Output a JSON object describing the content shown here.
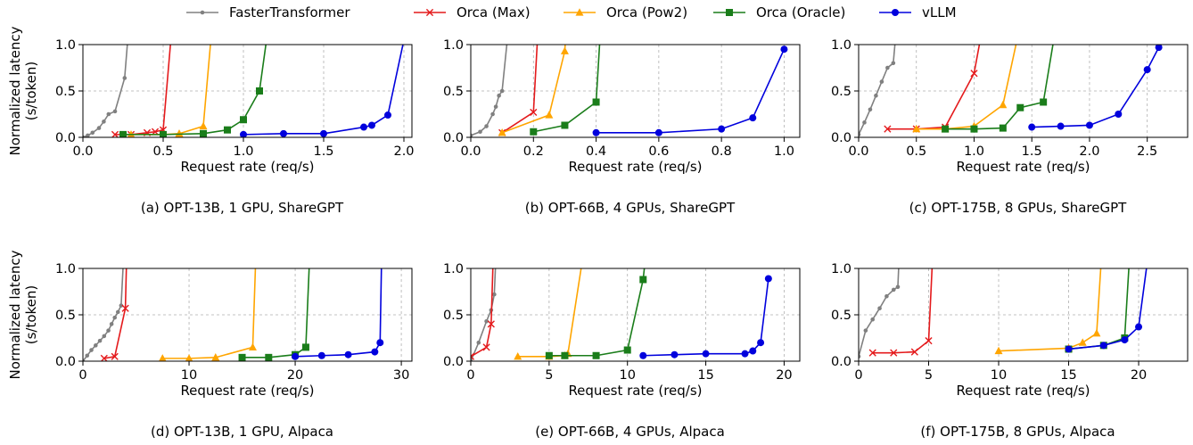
{
  "legend": [
    {
      "name": "FasterTransformer",
      "color": "#808080",
      "marker": "dot"
    },
    {
      "name": "Orca (Max)",
      "color": "#e41a1c",
      "marker": "x"
    },
    {
      "name": "Orca (Pow2)",
      "color": "#ffa500",
      "marker": "triangle"
    },
    {
      "name": "Orca (Oracle)",
      "color": "#1a7d1a",
      "marker": "square"
    },
    {
      "name": "vLLM",
      "color": "#0000dd",
      "marker": "circle"
    }
  ],
  "chart_data": [
    {
      "type": "line",
      "caption": "(a) OPT-13B, 1 GPU, ShareGPT",
      "xlabel": "Request rate (req/s)",
      "ylabel": [
        "Normalized latency",
        "(s/token)"
      ],
      "xlim": [
        0,
        2.05
      ],
      "ylim": [
        0,
        1.0
      ],
      "xticks": [
        0.0,
        0.5,
        1.0,
        1.5,
        2.0
      ],
      "xtick_labels": [
        "0.0",
        "0.5",
        "1.0",
        "1.5",
        "2.0"
      ],
      "yticks": [
        0.0,
        0.5,
        1.0
      ],
      "ytick_labels": [
        "0.0",
        "0.5",
        "1.0"
      ],
      "grid": true,
      "series": [
        {
          "name": "FasterTransformer",
          "x": [
            0.0,
            0.03,
            0.06,
            0.1,
            0.13,
            0.16,
            0.2,
            0.26,
            0.3
          ],
          "y": [
            0.0,
            0.02,
            0.05,
            0.1,
            0.17,
            0.25,
            0.28,
            0.64,
            1.5
          ]
        },
        {
          "name": "Orca (Max)",
          "x": [
            0.2,
            0.3,
            0.4,
            0.45,
            0.5,
            0.57
          ],
          "y": [
            0.03,
            0.03,
            0.05,
            0.06,
            0.08,
            1.5
          ]
        },
        {
          "name": "Orca (Pow2)",
          "x": [
            0.3,
            0.5,
            0.6,
            0.75,
            0.82
          ],
          "y": [
            0.03,
            0.03,
            0.04,
            0.12,
            1.5
          ]
        },
        {
          "name": "Orca (Oracle)",
          "x": [
            0.25,
            0.5,
            0.75,
            0.9,
            1.0,
            1.1,
            1.18
          ],
          "y": [
            0.03,
            0.03,
            0.04,
            0.08,
            0.19,
            0.5,
            1.5
          ]
        },
        {
          "name": "vLLM",
          "x": [
            1.0,
            1.25,
            1.5,
            1.75,
            1.8,
            1.9,
            2.0
          ],
          "y": [
            0.03,
            0.04,
            0.04,
            0.11,
            0.13,
            0.24,
            1.05
          ]
        }
      ]
    },
    {
      "type": "line",
      "caption": "(b) OPT-66B, 4 GPUs, ShareGPT",
      "xlabel": "Request rate (req/s)",
      "ylabel": [],
      "xlim": [
        0,
        1.05
      ],
      "ylim": [
        0,
        1.0
      ],
      "xticks": [
        0.0,
        0.2,
        0.4,
        0.6,
        0.8,
        1.0
      ],
      "xtick_labels": [
        "0.0",
        "0.2",
        "0.4",
        "0.6",
        "0.8",
        "1.0"
      ],
      "yticks": [
        0.0,
        0.5,
        1.0
      ],
      "ytick_labels": [
        "0.0",
        "0.5",
        "1.0"
      ],
      "grid": true,
      "series": [
        {
          "name": "FasterTransformer",
          "x": [
            0.0,
            0.03,
            0.05,
            0.07,
            0.08,
            0.09,
            0.1,
            0.13
          ],
          "y": [
            0.02,
            0.06,
            0.12,
            0.25,
            0.33,
            0.45,
            0.5,
            1.5
          ]
        },
        {
          "name": "Orca (Max)",
          "x": [
            0.1,
            0.2,
            0.22
          ],
          "y": [
            0.05,
            0.27,
            1.5
          ]
        },
        {
          "name": "Orca (Pow2)",
          "x": [
            0.1,
            0.25,
            0.3,
            0.31
          ],
          "y": [
            0.05,
            0.24,
            0.93,
            1.5
          ]
        },
        {
          "name": "Orca (Oracle)",
          "x": [
            0.2,
            0.3,
            0.4,
            0.42
          ],
          "y": [
            0.06,
            0.13,
            0.38,
            1.5
          ]
        },
        {
          "name": "vLLM",
          "x": [
            0.4,
            0.6,
            0.8,
            0.9,
            1.0
          ],
          "y": [
            0.05,
            0.05,
            0.09,
            0.21,
            0.95
          ]
        }
      ]
    },
    {
      "type": "line",
      "caption": "(c) OPT-175B, 8 GPUs, ShareGPT",
      "xlabel": "Request rate (req/s)",
      "ylabel": [],
      "xlim": [
        0,
        2.85
      ],
      "ylim": [
        0,
        1.0
      ],
      "xticks": [
        0.0,
        0.5,
        1.0,
        1.5,
        2.0,
        2.5
      ],
      "xtick_labels": [
        "0.0",
        "0.5",
        "1.0",
        "1.5",
        "2.0",
        "2.5"
      ],
      "yticks": [
        0.0,
        0.5,
        1.0
      ],
      "ytick_labels": [
        "0.0",
        "0.5",
        "1.0"
      ],
      "grid": true,
      "series": [
        {
          "name": "FasterTransformer",
          "x": [
            0.0,
            0.05,
            0.1,
            0.15,
            0.2,
            0.25,
            0.3,
            0.35
          ],
          "y": [
            0.03,
            0.16,
            0.3,
            0.45,
            0.6,
            0.75,
            0.8,
            1.5
          ]
        },
        {
          "name": "Orca (Max)",
          "x": [
            0.25,
            0.5,
            0.75,
            1.0,
            1.12
          ],
          "y": [
            0.09,
            0.09,
            0.11,
            0.69,
            1.5
          ]
        },
        {
          "name": "Orca (Pow2)",
          "x": [
            0.5,
            0.75,
            1.0,
            1.25,
            1.45
          ],
          "y": [
            0.09,
            0.09,
            0.12,
            0.35,
            1.5
          ]
        },
        {
          "name": "Orca (Oracle)",
          "x": [
            0.75,
            1.0,
            1.25,
            1.4,
            1.6,
            1.75
          ],
          "y": [
            0.09,
            0.09,
            0.1,
            0.32,
            0.38,
            1.5
          ]
        },
        {
          "name": "vLLM",
          "x": [
            1.5,
            1.75,
            2.0,
            2.25,
            2.5,
            2.6
          ],
          "y": [
            0.11,
            0.12,
            0.13,
            0.25,
            0.73,
            0.97
          ]
        }
      ]
    },
    {
      "type": "line",
      "caption": "(d) OPT-13B, 1 GPU, Alpaca",
      "xlabel": "Request rate (req/s)",
      "ylabel": [
        "Normalized latency",
        "(s/token)"
      ],
      "xlim": [
        0,
        31
      ],
      "ylim": [
        0,
        1.0
      ],
      "xticks": [
        0,
        10,
        20,
        30
      ],
      "xtick_labels": [
        "0",
        "10",
        "20",
        "30"
      ],
      "yticks": [
        0.0,
        0.5,
        1.0
      ],
      "ytick_labels": [
        "0.0",
        "0.5",
        "1.0"
      ],
      "grid": true,
      "series": [
        {
          "name": "FasterTransformer",
          "x": [
            0.0,
            0.4,
            0.8,
            1.2,
            1.6,
            2.0,
            2.4,
            2.7,
            3.0,
            3.3,
            3.6,
            4.0
          ],
          "y": [
            0.0,
            0.06,
            0.12,
            0.17,
            0.22,
            0.27,
            0.33,
            0.4,
            0.47,
            0.53,
            0.6,
            1.5
          ]
        },
        {
          "name": "Orca (Max)",
          "x": [
            2.0,
            3.0,
            4.0,
            4.2
          ],
          "y": [
            0.03,
            0.05,
            0.57,
            1.5
          ]
        },
        {
          "name": "Orca (Pow2)",
          "x": [
            7.5,
            10.0,
            12.5,
            16.0,
            16.4
          ],
          "y": [
            0.03,
            0.03,
            0.04,
            0.15,
            1.5
          ]
        },
        {
          "name": "Orca (Oracle)",
          "x": [
            15.0,
            17.5,
            20.0,
            21.0,
            21.5
          ],
          "y": [
            0.04,
            0.04,
            0.07,
            0.15,
            1.5
          ]
        },
        {
          "name": "vLLM",
          "x": [
            20.0,
            22.5,
            25.0,
            27.5,
            28.0,
            28.2
          ],
          "y": [
            0.05,
            0.06,
            0.07,
            0.1,
            0.2,
            1.5
          ]
        }
      ]
    },
    {
      "type": "line",
      "caption": "(e) OPT-66B, 4 GPUs, Alpaca",
      "xlabel": "Request rate (req/s)",
      "ylabel": [],
      "xlim": [
        0,
        21
      ],
      "ylim": [
        0,
        1.0
      ],
      "xticks": [
        0,
        5,
        10,
        15,
        20
      ],
      "xtick_labels": [
        "0",
        "5",
        "10",
        "15",
        "20"
      ],
      "yticks": [
        0.0,
        0.5,
        1.0
      ],
      "ytick_labels": [
        "0.0",
        "0.5",
        "1.0"
      ],
      "grid": true,
      "series": [
        {
          "name": "FasterTransformer",
          "x": [
            0.0,
            0.5,
            1.0,
            1.3,
            1.5,
            1.7
          ],
          "y": [
            0.0,
            0.2,
            0.43,
            0.55,
            0.72,
            1.5
          ]
        },
        {
          "name": "Orca (Max)",
          "x": [
            0.0,
            1.0,
            1.3,
            1.5
          ],
          "y": [
            0.05,
            0.15,
            0.4,
            1.5
          ]
        },
        {
          "name": "Orca (Pow2)",
          "x": [
            3.0,
            5.0,
            6.0,
            6.2,
            7.5
          ],
          "y": [
            0.05,
            0.05,
            0.06,
            0.08,
            1.5
          ]
        },
        {
          "name": "Orca (Oracle)",
          "x": [
            5.0,
            6.0,
            8.0,
            10.0,
            11.0,
            11.4
          ],
          "y": [
            0.06,
            0.06,
            0.06,
            0.12,
            0.88,
            1.5
          ]
        },
        {
          "name": "vLLM",
          "x": [
            11.0,
            13.0,
            15.0,
            17.5,
            18.0,
            18.5,
            19.0
          ],
          "y": [
            0.06,
            0.07,
            0.08,
            0.08,
            0.11,
            0.2,
            0.89
          ]
        }
      ]
    },
    {
      "type": "line",
      "caption": "(f) OPT-175B, 8 GPUs, Alpaca",
      "xlabel": "Request rate (req/s)",
      "ylabel": [],
      "xlim": [
        0,
        23.5
      ],
      "ylim": [
        0,
        1.0
      ],
      "xticks": [
        0,
        5,
        10,
        15,
        20
      ],
      "xtick_labels": [
        "0",
        "5",
        "10",
        "15",
        "20"
      ],
      "yticks": [
        0.0,
        0.5,
        1.0
      ],
      "ytick_labels": [
        "0.0",
        "0.5",
        "1.0"
      ],
      "grid": true,
      "series": [
        {
          "name": "FasterTransformer",
          "x": [
            0.0,
            0.5,
            1.0,
            1.5,
            2.0,
            2.5,
            2.8,
            3.0
          ],
          "y": [
            0.05,
            0.33,
            0.45,
            0.57,
            0.7,
            0.77,
            0.8,
            1.5
          ]
        },
        {
          "name": "Orca (Max)",
          "x": [
            1.0,
            2.5,
            4.0,
            5.0,
            5.4
          ],
          "y": [
            0.09,
            0.09,
            0.1,
            0.22,
            1.5
          ]
        },
        {
          "name": "Orca (Pow2)",
          "x": [
            10.0,
            15.0,
            16.0,
            17.0,
            17.5
          ],
          "y": [
            0.11,
            0.14,
            0.2,
            0.3,
            1.5
          ]
        },
        {
          "name": "Orca (Oracle)",
          "x": [
            15.0,
            17.5,
            19.0,
            19.5
          ],
          "y": [
            0.13,
            0.17,
            0.25,
            1.5
          ]
        },
        {
          "name": "vLLM",
          "x": [
            15.0,
            17.5,
            19.0,
            20.0,
            21.0
          ],
          "y": [
            0.13,
            0.17,
            0.23,
            0.37,
            1.5
          ]
        }
      ]
    }
  ]
}
